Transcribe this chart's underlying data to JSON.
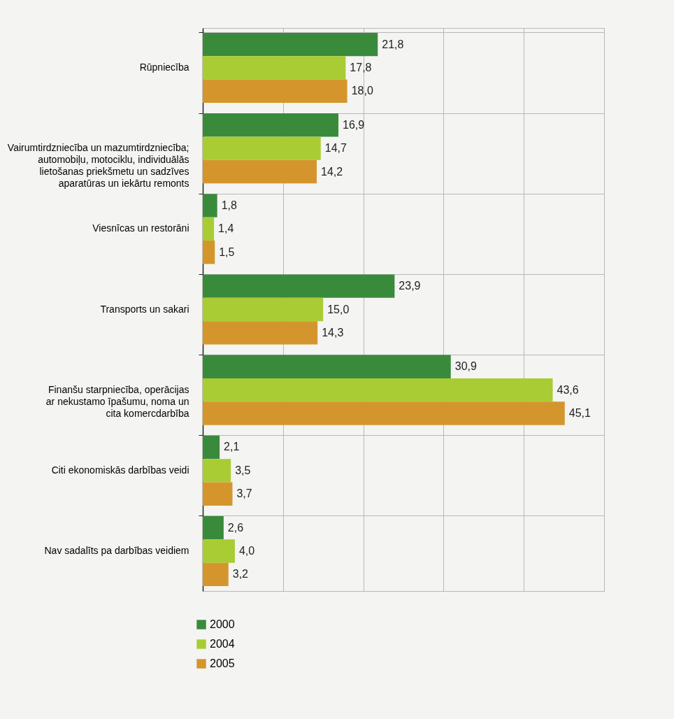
{
  "chart_data": {
    "type": "bar",
    "orientation": "horizontal",
    "categories": [
      "Rūpniecība",
      "Vairumtirdzniecība un mazumtirdzniecība;\nautomobiļu, motociklu, individuālās\nlietošanas priekšmetu un sadzīves\naparatūras un iekārtu remonts",
      "Viesnīcas un restorāni",
      "Transports un sakari",
      "Finanšu starpniecība, operācijas\nar nekustamo īpašumu, noma un\ncita komercdarbība",
      "Citi ekonomiskās darbības veidi",
      "Nav sadalīts pa darbības veidiem"
    ],
    "series": [
      {
        "name": "2000",
        "color": "#3a8a3c",
        "values": [
          21.8,
          16.9,
          1.8,
          23.9,
          30.9,
          2.1,
          2.6
        ],
        "value_labels": [
          "21,8",
          "16,9",
          "1,8",
          "23,9",
          "30,9",
          "2,1",
          "2,6"
        ]
      },
      {
        "name": "2004",
        "color": "#a9cc34",
        "values": [
          17.8,
          14.7,
          1.4,
          15.0,
          43.6,
          3.5,
          4.0
        ],
        "value_labels": [
          "17,8",
          "14,7",
          "1,4",
          "15,0",
          "43,6",
          "3,5",
          "4,0"
        ]
      },
      {
        "name": "2005",
        "color": "#d4962c",
        "values": [
          18.0,
          14.2,
          1.5,
          14.3,
          45.1,
          3.7,
          3.2
        ],
        "value_labels": [
          "18,0",
          "14,2",
          "1,5",
          "14,3",
          "45,1",
          "3,7",
          "3,2"
        ]
      }
    ],
    "tick_labels": "y",
    "grid": true,
    "legend": "bottom left"
  }
}
